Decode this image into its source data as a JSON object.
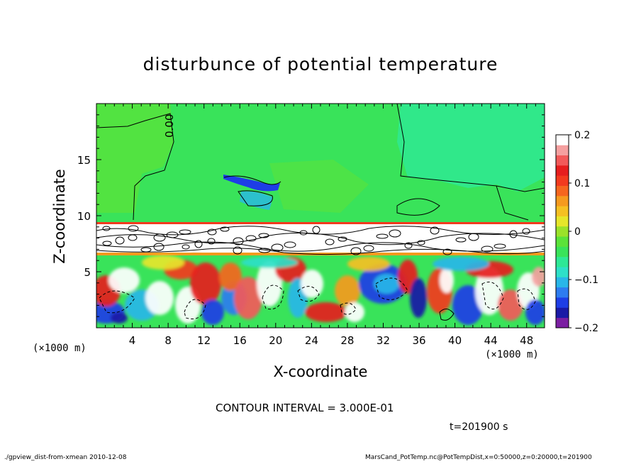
{
  "chart_data": {
    "type": "heatmap",
    "title": "disturbunce of potential temperature",
    "xlabel": "X-coordinate",
    "ylabel": "Z-coordinate",
    "x_unit_label": "(×1000 m)",
    "xlim": [
      0,
      50
    ],
    "ylim": [
      0,
      20
    ],
    "x_ticks": [
      4,
      8,
      12,
      16,
      20,
      24,
      28,
      32,
      36,
      40,
      44,
      48
    ],
    "y_ticks": [
      5,
      10,
      15
    ],
    "contour_label": "0.00",
    "contour_interval_text": "CONTOUR INTERVAL = 3.000E-01",
    "time_text": "t=201900 s",
    "colorbar": {
      "range": [
        -0.2,
        0.2
      ],
      "tick_labels": [
        "0.2",
        "0.1",
        "0",
        "−0.1",
        "−0.2"
      ],
      "tick_values": [
        0.2,
        0.1,
        0,
        -0.1,
        -0.2
      ],
      "colors": [
        "#7b1fa2",
        "#1a1aa6",
        "#1e3ee6",
        "#2e7cf0",
        "#29b6e8",
        "#2ee0c8",
        "#2ee896",
        "#39e35a",
        "#5be33a",
        "#9be22a",
        "#e6e62a",
        "#f5c022",
        "#f59a1e",
        "#f5661e",
        "#f23a1e",
        "#e61e1e",
        "#f25a5a",
        "#f5a0a0",
        "#ffffff"
      ]
    }
  },
  "footer": {
    "left": "./gpview_dist-from-xmean  2010-12-08",
    "right": "MarsCand_PotTemp.nc@PotTempDist,x=0:50000,z=0:20000,t=201900"
  }
}
